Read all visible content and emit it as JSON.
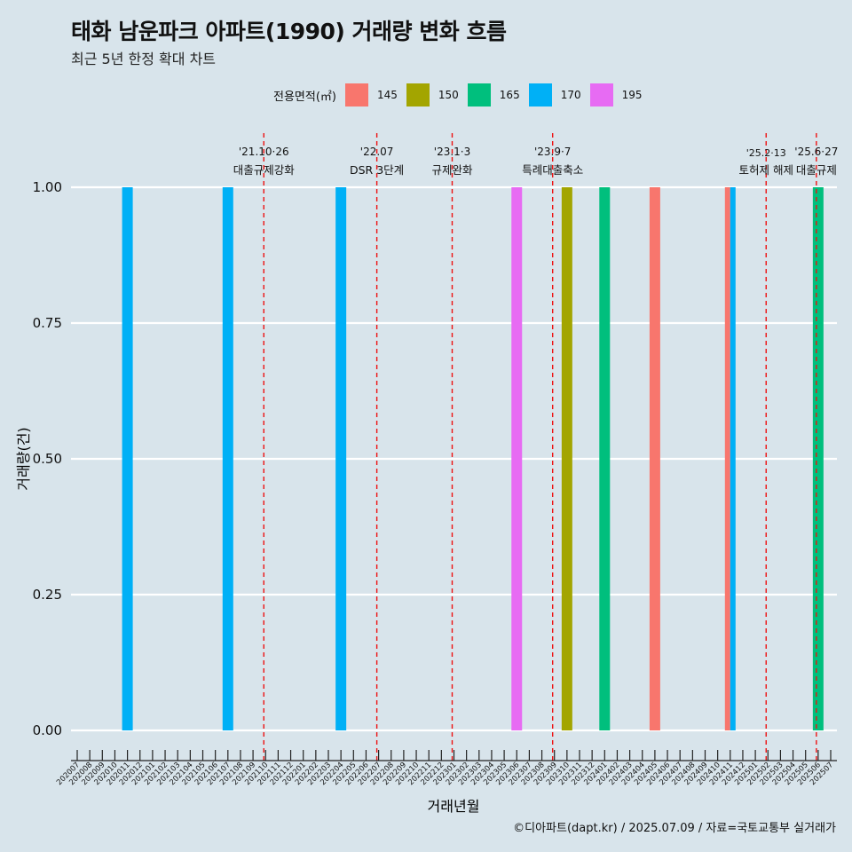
{
  "title": "태화 남운파크 아파트(1990) 거래량 변화 흐름",
  "subtitle": "최근 5년 한정 확대 차트",
  "caption": "©디아파트(dapt.kr) / 2025.07.09 / 자료=국토교통부 실거래가",
  "legend": {
    "title": "전용면적(㎡)",
    "items": [
      {
        "label": "145",
        "color": "#F8766D"
      },
      {
        "label": "150",
        "color": "#A3A500"
      },
      {
        "label": "165",
        "color": "#00BF7D"
      },
      {
        "label": "170",
        "color": "#00B0F6"
      },
      {
        "label": "195",
        "color": "#E76BF3"
      }
    ]
  },
  "chart_data": {
    "type": "bar",
    "xlabel": "거래년월",
    "ylabel": "거래량(건)",
    "ylim": [
      0,
      1
    ],
    "yticks": [
      "0.00",
      "0.25",
      "0.50",
      "0.75",
      "1.00"
    ],
    "categories": [
      "202007",
      "202008",
      "202009",
      "202010",
      "202011",
      "202012",
      "202101",
      "202102",
      "202103",
      "202104",
      "202105",
      "202106",
      "202107",
      "202108",
      "202109",
      "202110",
      "202111",
      "202112",
      "202201",
      "202202",
      "202203",
      "202204",
      "202205",
      "202206",
      "202207",
      "202208",
      "202209",
      "202210",
      "202211",
      "202212",
      "202301",
      "202302",
      "202303",
      "202304",
      "202305",
      "202306",
      "202307",
      "202308",
      "202309",
      "202310",
      "202311",
      "202312",
      "202401",
      "202402",
      "202403",
      "202404",
      "202405",
      "202406",
      "202407",
      "202408",
      "202409",
      "202410",
      "202411",
      "202412",
      "202501",
      "202502",
      "202503",
      "202504",
      "202505",
      "202506",
      "202507"
    ],
    "bars": [
      {
        "month": "202011",
        "area": "170",
        "value": 1
      },
      {
        "month": "202107",
        "area": "170",
        "value": 1
      },
      {
        "month": "202204",
        "area": "170",
        "value": 1
      },
      {
        "month": "202306",
        "area": "195",
        "value": 1
      },
      {
        "month": "202310",
        "area": "150",
        "value": 1
      },
      {
        "month": "202401",
        "area": "165",
        "value": 1
      },
      {
        "month": "202405",
        "area": "145",
        "value": 1
      },
      {
        "month": "202411",
        "area": "145",
        "value": 1
      },
      {
        "month": "202411",
        "area": "170",
        "value": 1
      },
      {
        "month": "202506",
        "area": "165",
        "value": 1
      }
    ],
    "events": [
      {
        "month": "202110",
        "date": "'21.10·26",
        "label": "대출규제강화"
      },
      {
        "month": "202207",
        "date": "'22.07",
        "label": "DSR 3단계"
      },
      {
        "month": "202301",
        "date": "'23.1·3",
        "label": "규제완화"
      },
      {
        "month": "202309",
        "date": "'23.9·7",
        "label": "특례대출축소"
      },
      {
        "month": "202502",
        "date": "'25.2·13",
        "label": "토허제 해제"
      },
      {
        "month": "202506",
        "date": "'25.6·27",
        "label": "대출규제"
      }
    ]
  }
}
